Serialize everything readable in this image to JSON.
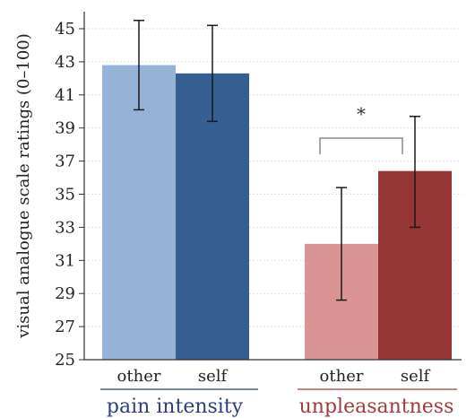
{
  "chart_data": {
    "type": "bar",
    "ylabel": "visual analogue scale ratings (0–100)",
    "ylim": [
      25,
      46
    ],
    "yticks": [
      25,
      27,
      29,
      31,
      33,
      35,
      37,
      39,
      41,
      43,
      45
    ],
    "grid": true,
    "groups": [
      {
        "label": "pain intensity",
        "label_color": "#2c3f7a",
        "bars": [
          {
            "category": "other",
            "value": 42.8,
            "error_low": 40.1,
            "error_high": 45.5,
            "color": "#95b3d7"
          },
          {
            "category": "self",
            "value": 42.3,
            "error_low": 39.4,
            "error_high": 45.2,
            "color": "#355e91"
          }
        ]
      },
      {
        "label": "unpleasantness",
        "label_color": "#a03c3c",
        "bars": [
          {
            "category": "other",
            "value": 32.0,
            "error_low": 28.6,
            "error_high": 35.4,
            "color": "#da9494"
          },
          {
            "category": "self",
            "value": 36.4,
            "error_low": 33.0,
            "error_high": 39.7,
            "color": "#963634"
          }
        ]
      }
    ],
    "annotations": [
      {
        "type": "significance",
        "group": 1,
        "text": "*"
      }
    ]
  }
}
